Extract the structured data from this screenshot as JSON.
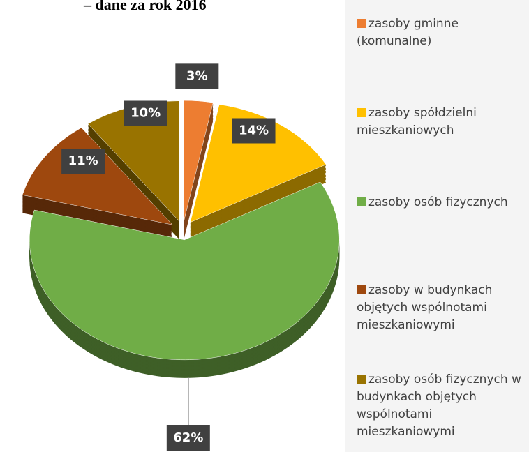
{
  "chart_data": {
    "type": "pie",
    "title": "– dane za rok 2016",
    "categories": [
      "zasoby gminne (komunalne)",
      "zasoby spółdzielni mieszkaniowych",
      "zasoby osób fizycznych",
      "zasoby w budynkach objętych wspólnotami mieszkaniowymi",
      "zasoby osób fizycznych w budynkach objętych wspólnotami mieszkaniowymi"
    ],
    "values": [
      3,
      14,
      62,
      11,
      10
    ],
    "value_labels": [
      "3%",
      "14%",
      "62%",
      "11%",
      "10%"
    ],
    "colors": [
      "#ed7d31",
      "#ffc000",
      "#70ad47",
      "#9e480e",
      "#997300"
    ],
    "legend": "right"
  }
}
